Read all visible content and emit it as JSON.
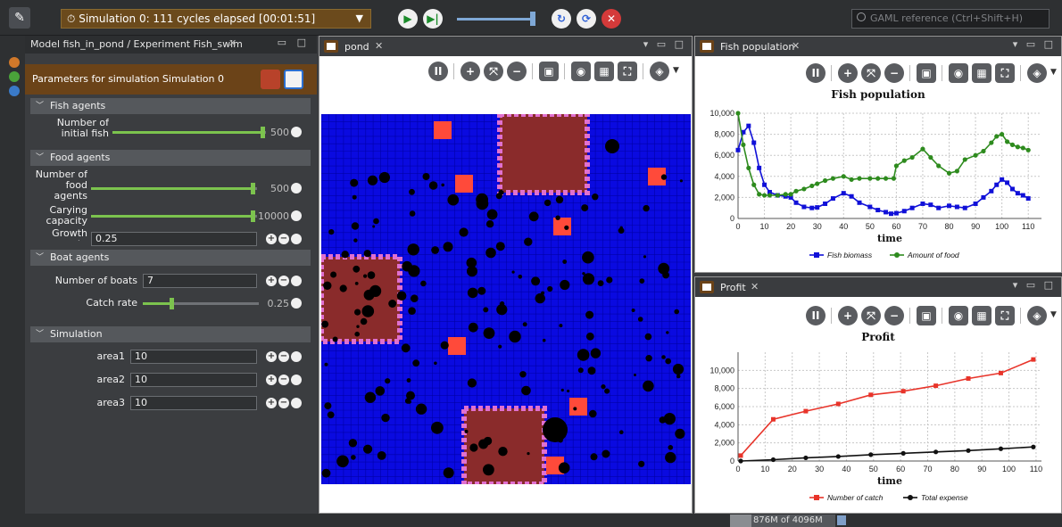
{
  "toolbar": {
    "simulation_label": "Simulation 0: 111 cycles elapsed [00:01:51]",
    "search_placeholder": "GAML reference (Ctrl+Shift+H)",
    "icons": [
      "edit-icon",
      "clock-icon",
      "play-icon",
      "step-icon",
      "reload-icon",
      "sync-icon",
      "close-icon"
    ]
  },
  "params": {
    "tab_title": "Model fish_in_pond / Experiment Fish_swim",
    "header": "Parameters for simulation Simulation 0",
    "groups": {
      "fish": "Fish agents",
      "food": "Food agents",
      "boat": "Boat agents",
      "simulation": "Simulation"
    },
    "fish_groups": {
      "label": "Number of initial fish groups",
      "value": "500",
      "fraction": 0.98
    },
    "food_agents": {
      "label": "Number of food agents",
      "value": "500",
      "fraction": 0.98
    },
    "carrying_capacity": {
      "label": "Carying capacity",
      "value": "10000",
      "fraction": 0.98
    },
    "growth_rate": {
      "label": "Growth rate",
      "value": "0.25"
    },
    "boats": {
      "label": "Number of boats",
      "value": "7"
    },
    "catch_rate": {
      "label": "Catch rate",
      "value": "0.25",
      "fraction": 0.25
    },
    "area1": {
      "label": "area1",
      "value": "10"
    },
    "area2": {
      "label": "area2",
      "value": "10"
    },
    "area3": {
      "label": "area3",
      "value": "10"
    }
  },
  "pond": {
    "tab_title": "pond",
    "water_color": "#0a0ae0",
    "land_color": "#8a2b2b",
    "buoy_color": "#ff4a3a"
  },
  "fish_panel": {
    "tab_title": "Fish population"
  },
  "profit_panel": {
    "tab_title": "Profit"
  },
  "status": {
    "memory": "876M of 4096M"
  },
  "chart_data": [
    {
      "type": "line",
      "title": "Fish population",
      "xlabel": "time",
      "ylabel": "",
      "xlim": [
        0,
        115
      ],
      "ylim": [
        0,
        10000
      ],
      "x_ticks": [
        0,
        10,
        20,
        30,
        40,
        50,
        60,
        70,
        80,
        90,
        100,
        110
      ],
      "y_ticks": [
        0,
        2000,
        4000,
        6000,
        8000,
        10000
      ],
      "x_tick_labels": [
        "0",
        "10",
        "20",
        "30",
        "40",
        "50",
        "60",
        "70",
        "80",
        "90",
        "100",
        "110"
      ],
      "y_tick_labels": [
        "0",
        "2,000",
        "4,000",
        "6,000",
        "8,000",
        "10,000"
      ],
      "legend": "bottom",
      "series": [
        {
          "name": "Fish biomass",
          "color": "#1010d8",
          "marker": "square",
          "x": [
            0,
            2,
            4,
            6,
            8,
            10,
            12,
            15,
            18,
            20,
            22,
            25,
            28,
            30,
            33,
            36,
            40,
            43,
            46,
            50,
            53,
            56,
            58,
            60,
            63,
            66,
            70,
            73,
            76,
            80,
            83,
            86,
            90,
            93,
            96,
            98,
            100,
            102,
            104,
            106,
            108,
            110
          ],
          "y": [
            6500,
            8200,
            8800,
            7200,
            4800,
            3200,
            2500,
            2200,
            2100,
            2000,
            1500,
            1100,
            1000,
            1050,
            1400,
            1900,
            2400,
            2100,
            1500,
            1100,
            800,
            600,
            450,
            500,
            700,
            1000,
            1400,
            1300,
            1000,
            1200,
            1100,
            1000,
            1400,
            2000,
            2600,
            3200,
            3700,
            3400,
            2800,
            2400,
            2200,
            1900
          ]
        },
        {
          "name": "Amount of food",
          "color": "#2e8b1e",
          "marker": "circle",
          "x": [
            0,
            2,
            4,
            6,
            8,
            10,
            12,
            15,
            18,
            20,
            22,
            25,
            28,
            30,
            33,
            36,
            40,
            43,
            46,
            50,
            53,
            56,
            59,
            60,
            63,
            66,
            70,
            73,
            76,
            80,
            83,
            86,
            90,
            93,
            96,
            98,
            100,
            102,
            104,
            106,
            108,
            110
          ],
          "y": [
            10000,
            7000,
            4800,
            3200,
            2300,
            2200,
            2200,
            2200,
            2300,
            2300,
            2600,
            2800,
            3100,
            3300,
            3600,
            3800,
            4000,
            3700,
            3800,
            3800,
            3800,
            3800,
            3800,
            5000,
            5500,
            5800,
            6600,
            5800,
            5000,
            4300,
            4500,
            5600,
            6000,
            6400,
            7200,
            7800,
            8000,
            7300,
            7000,
            6800,
            6700,
            6500
          ]
        }
      ]
    },
    {
      "type": "line",
      "title": "Profit",
      "xlabel": "time",
      "ylabel": "",
      "xlim": [
        0,
        112
      ],
      "ylim": [
        0,
        12000
      ],
      "x_ticks": [
        0,
        10,
        20,
        30,
        40,
        50,
        60,
        70,
        80,
        90,
        100,
        110
      ],
      "y_ticks": [
        0,
        2000,
        4000,
        6000,
        8000,
        10000
      ],
      "x_tick_labels": [
        "0",
        "10",
        "20",
        "30",
        "40",
        "50",
        "60",
        "70",
        "80",
        "90",
        "100",
        "110"
      ],
      "y_tick_labels": [
        "0",
        "2,000",
        "4,000",
        "6,000",
        "8,000",
        "10,000"
      ],
      "legend": "bottom",
      "series": [
        {
          "name": "Number of catch",
          "color": "#e8342a",
          "marker": "square",
          "x": [
            1,
            13,
            25,
            37,
            49,
            61,
            73,
            85,
            97,
            109
          ],
          "y": [
            600,
            4600,
            5500,
            6300,
            7300,
            7700,
            8300,
            9100,
            9700,
            11200
          ]
        },
        {
          "name": "Total expense",
          "color": "#111111",
          "marker": "circle",
          "x": [
            1,
            13,
            25,
            37,
            49,
            61,
            73,
            85,
            97,
            109
          ],
          "y": [
            0,
            150,
            350,
            500,
            700,
            850,
            1000,
            1150,
            1350,
            1550
          ]
        }
      ]
    }
  ]
}
